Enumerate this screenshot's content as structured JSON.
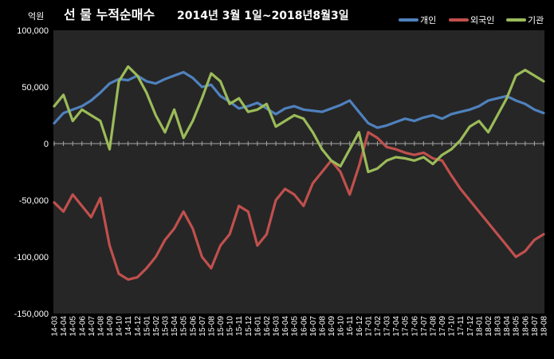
{
  "chart_data": {
    "type": "line",
    "title": "선 물 누적순매수",
    "subtitle": "2014년 3월 1일~2018년8월3일",
    "ylabel": "억원",
    "ylim": [
      -150000,
      100000
    ],
    "yticks": [
      100000,
      50000,
      0,
      -50000,
      -100000,
      -150000
    ],
    "ytick_labels": [
      "100,000",
      "50,000",
      "0",
      "-50,000",
      "-100,000",
      "-150,000"
    ],
    "grid": false,
    "legend_position": "top-right",
    "categories": [
      "14-03",
      "14-04",
      "14-05",
      "14-06",
      "14-07",
      "14-08",
      "14-09",
      "14-10",
      "14-11",
      "14-12",
      "15-01",
      "15-02",
      "15-03",
      "15-04",
      "15-05",
      "15-06",
      "15-07",
      "15-08",
      "15-09",
      "15-10",
      "15-11",
      "15-12",
      "16-01",
      "16-02",
      "16-03",
      "16-04",
      "16-05",
      "16-06",
      "16-07",
      "16-08",
      "16-09",
      "16-10",
      "16-11",
      "16-12",
      "17-01",
      "17-02",
      "17-03",
      "17-04",
      "17-05",
      "17-06",
      "17-07",
      "17-08",
      "17-09",
      "17-10",
      "17-11",
      "17-12",
      "18-01",
      "18-02",
      "18-03",
      "18-04",
      "18-05",
      "18-06",
      "18-07",
      "18-08"
    ],
    "series": [
      {
        "name": "개인",
        "color": "#4F81BD",
        "values": [
          18000,
          27000,
          30000,
          33000,
          38000,
          45000,
          53000,
          57000,
          56000,
          60000,
          55000,
          53000,
          57000,
          60000,
          63000,
          58000,
          50000,
          52000,
          42000,
          37000,
          31000,
          33000,
          36000,
          31000,
          26000,
          31000,
          33000,
          30000,
          29000,
          28000,
          31000,
          34000,
          38000,
          28000,
          18000,
          14000,
          16000,
          19000,
          22000,
          20000,
          23000,
          25000,
          22000,
          26000,
          28000,
          30000,
          33000,
          38000,
          40000,
          42000,
          38000,
          35000,
          30000,
          27000
        ]
      },
      {
        "name": "외국인",
        "color": "#C0504D",
        "values": [
          -52000,
          -60000,
          -45000,
          -55000,
          -65000,
          -48000,
          -90000,
          -115000,
          -120000,
          -118000,
          -110000,
          -100000,
          -85000,
          -75000,
          -60000,
          -75000,
          -100000,
          -110000,
          -90000,
          -80000,
          -55000,
          -60000,
          -90000,
          -80000,
          -50000,
          -40000,
          -45000,
          -55000,
          -35000,
          -25000,
          -15000,
          -25000,
          -45000,
          -20000,
          10000,
          5000,
          -3000,
          -5000,
          -8000,
          -10000,
          -8000,
          -13000,
          -15000,
          -28000,
          -40000,
          -50000,
          -60000,
          -70000,
          -80000,
          -90000,
          -100000,
          -95000,
          -85000,
          -80000
        ]
      },
      {
        "name": "기관",
        "color": "#9BBB59",
        "values": [
          33000,
          43000,
          20000,
          30000,
          25000,
          20000,
          -5000,
          55000,
          68000,
          60000,
          45000,
          25000,
          10000,
          30000,
          5000,
          20000,
          40000,
          62000,
          55000,
          35000,
          40000,
          28000,
          30000,
          35000,
          15000,
          20000,
          25000,
          22000,
          10000,
          -5000,
          -15000,
          -20000,
          -5000,
          10000,
          -25000,
          -22000,
          -15000,
          -12000,
          -13000,
          -15000,
          -12000,
          -18000,
          -10000,
          -5000,
          3000,
          15000,
          20000,
          10000,
          25000,
          40000,
          60000,
          65000,
          60000,
          55000
        ]
      }
    ]
  }
}
